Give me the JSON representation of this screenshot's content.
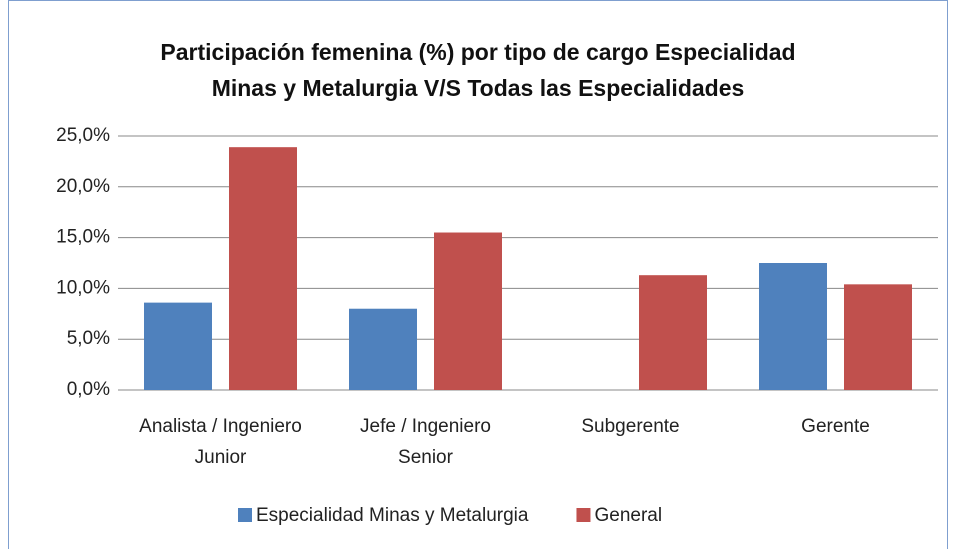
{
  "chart_data": {
    "type": "bar",
    "title": "Participación femenina (%) por tipo de cargo Especialidad Minas y Metalurgia V/S Todas las Especialidades",
    "categories": [
      "Analista / Ingeniero Junior",
      "Jefe / Ingeniero Senior",
      "Subgerente",
      "Gerente"
    ],
    "series": [
      {
        "name": "Especialidad Minas y Metalurgia",
        "color": "#4f81bd",
        "values": [
          8.6,
          8.0,
          0,
          12.5
        ]
      },
      {
        "name": "General",
        "color": "#c0504d",
        "values": [
          23.9,
          15.5,
          11.3,
          10.4
        ]
      }
    ],
    "ylim": [
      0,
      25
    ],
    "yticks": [
      {
        "value": 0,
        "label": "0,0%"
      },
      {
        "value": 5,
        "label": "5,0%"
      },
      {
        "value": 10,
        "label": "10,0%"
      },
      {
        "value": 15,
        "label": "15,0%"
      },
      {
        "value": 20,
        "label": "20,0%"
      },
      {
        "value": 25,
        "label": "25,0%"
      }
    ],
    "grid": true,
    "legend": "bottom"
  }
}
